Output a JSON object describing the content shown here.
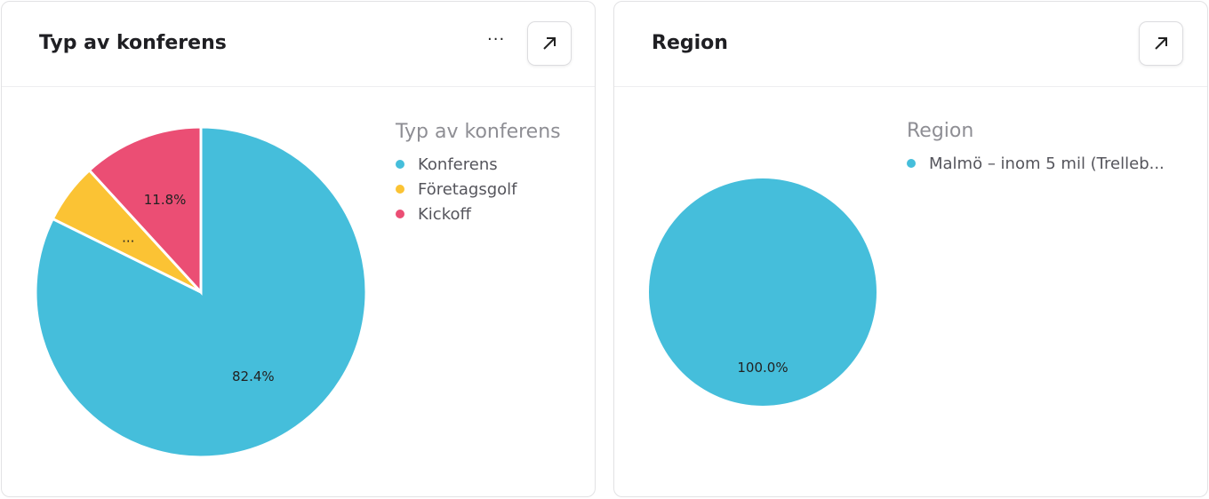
{
  "chart_data": [
    {
      "type": "pie",
      "title": "Typ av konferens",
      "legend_title": "Typ av konferens",
      "legend_position": "right",
      "slices": [
        {
          "name": "Konferens",
          "value": 82.4,
          "label": "82.4%",
          "color": "#45bedb"
        },
        {
          "name": "Företagsgolf",
          "value": 5.9,
          "label": "...",
          "color": "#fbc334"
        },
        {
          "name": "Kickoff",
          "value": 11.8,
          "label": "11.8%",
          "color": "#eb4e74"
        }
      ]
    },
    {
      "type": "pie",
      "title": "Region",
      "legend_title": "Region",
      "legend_position": "right",
      "slices": [
        {
          "name": "Malmö – inom 5 mil (Trelleb...",
          "value": 100.0,
          "label": "100.0%",
          "color": "#45bedb"
        }
      ]
    }
  ],
  "icons": {
    "more": "more-horizontal-icon",
    "expand": "arrow-up-right-icon"
  },
  "more_label": "···"
}
